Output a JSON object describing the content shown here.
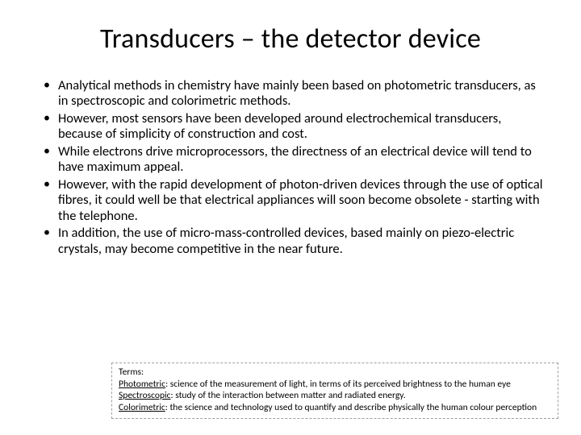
{
  "title": "Transducers – the detector device",
  "bullets": [
    "Analytical methods in chemistry have mainly been based on photometric transducers, as in spectroscopic and colorimetric methods.",
    "However, most sensors have been developed around electrochemical transducers, because of simplicity of construction and cost.",
    "While electrons drive microprocessors, the directness of an electrical device will tend to have maximum appeal.",
    "However, with the rapid development of photon-driven devices through the use of optical fibres, it could well be that electrical appliances will soon become obsolete - starting with the telephone.",
    " In addition, the use of micro-mass-controlled devices, based mainly on piezo-electric crystals, may become competitive in the near future."
  ],
  "terms": {
    "heading": "Terms:",
    "items": [
      {
        "name": "Photometric",
        "def": ": science of the measurement of light, in terms of its perceived brightness to the human eye"
      },
      {
        "name": "Spectroscopic",
        "def": ": study of the interaction between matter and radiated energy."
      },
      {
        "name": "Colorimetric",
        "def": ": the science and technology used to quantify and describe physically the human colour perception"
      }
    ]
  }
}
